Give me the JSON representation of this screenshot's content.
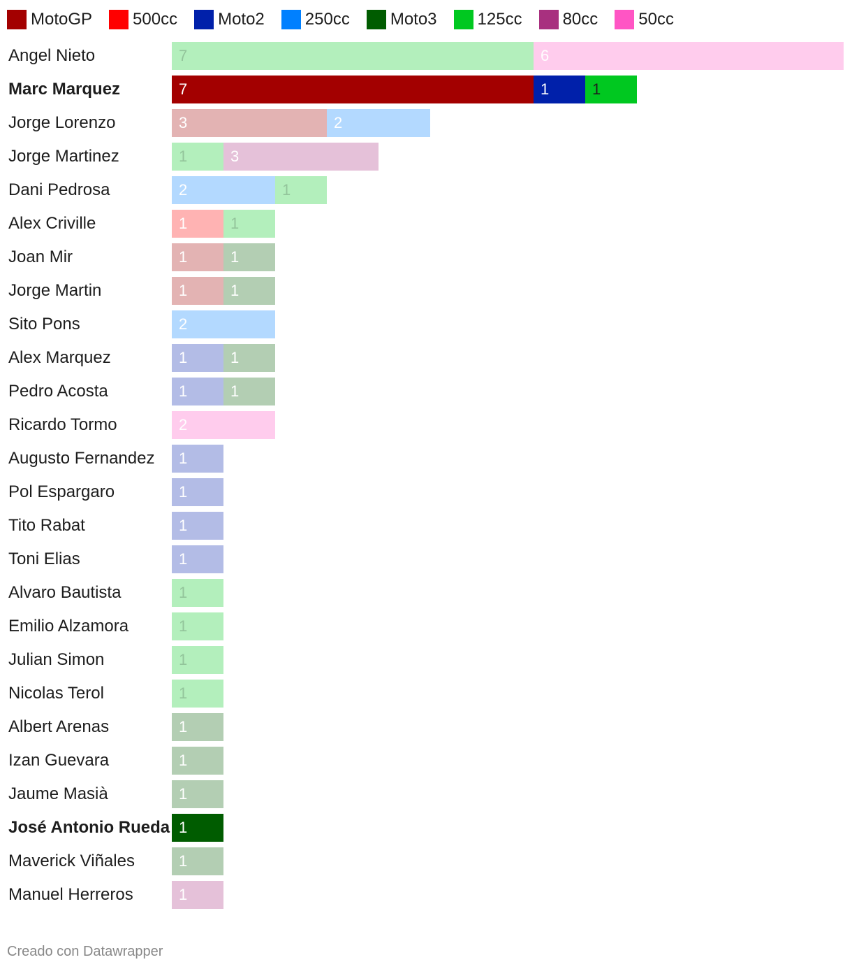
{
  "legend": [
    {
      "key": "motogp",
      "label": "MotoGP",
      "color": "#a30000"
    },
    {
      "key": "500cc",
      "label": "500cc",
      "color": "#ff0000"
    },
    {
      "key": "moto2",
      "label": "Moto2",
      "color": "#0020aa"
    },
    {
      "key": "250cc",
      "label": "250cc",
      "color": "#0080ff"
    },
    {
      "key": "moto3",
      "label": "Moto3",
      "color": "#005c00"
    },
    {
      "key": "125cc",
      "label": "125cc",
      "color": "#00c820"
    },
    {
      "key": "80cc",
      "label": "80cc",
      "color": "#a8307f"
    },
    {
      "key": "50cc",
      "label": "50cc",
      "color": "#ff55c4"
    }
  ],
  "chart_data": {
    "type": "bar",
    "orientation": "horizontal",
    "stacked": true,
    "xlim": [
      0,
      13
    ],
    "highlighted_rows": [
      "Marc Marquez",
      "José Antonio Rueda"
    ],
    "categories": [
      "Angel Nieto",
      "Marc Marquez",
      "Jorge Lorenzo",
      "Jorge Martinez",
      "Dani Pedrosa",
      "Alex Criville",
      "Joan Mir",
      "Jorge Martin",
      "Sito Pons",
      "Alex Marquez",
      "Pedro Acosta",
      "Ricardo Tormo",
      "Augusto Fernandez",
      "Pol Espargaro",
      "Tito Rabat",
      "Toni Elias",
      "Alvaro Bautista",
      "Emilio Alzamora",
      "Julian Simon",
      "Nicolas Terol",
      "Albert Arenas",
      "Izan Guevara",
      "Jaume Masià",
      "José Antonio Rueda",
      "Maverick Viñales",
      "Manuel Herreros"
    ],
    "series": [
      {
        "name": "MotoGP",
        "values": [
          0,
          7,
          3,
          0,
          0,
          0,
          1,
          1,
          0,
          0,
          0,
          0,
          0,
          0,
          0,
          0,
          0,
          0,
          0,
          0,
          0,
          0,
          0,
          0,
          0,
          0
        ]
      },
      {
        "name": "500cc",
        "values": [
          0,
          0,
          0,
          0,
          0,
          1,
          0,
          0,
          0,
          0,
          0,
          0,
          0,
          0,
          0,
          0,
          0,
          0,
          0,
          0,
          0,
          0,
          0,
          0,
          0,
          0
        ]
      },
      {
        "name": "Moto2",
        "values": [
          0,
          1,
          0,
          0,
          0,
          0,
          0,
          0,
          0,
          1,
          1,
          0,
          1,
          1,
          1,
          1,
          0,
          0,
          0,
          0,
          0,
          0,
          0,
          0,
          0,
          0
        ]
      },
      {
        "name": "250cc",
        "values": [
          0,
          0,
          2,
          0,
          2,
          0,
          0,
          0,
          2,
          0,
          0,
          0,
          0,
          0,
          0,
          0,
          0,
          0,
          0,
          0,
          0,
          0,
          0,
          0,
          0,
          0
        ]
      },
      {
        "name": "Moto3",
        "values": [
          0,
          0,
          0,
          0,
          0,
          0,
          1,
          1,
          0,
          1,
          1,
          0,
          0,
          0,
          0,
          0,
          0,
          0,
          0,
          0,
          1,
          1,
          1,
          1,
          1,
          0
        ]
      },
      {
        "name": "125cc",
        "values": [
          7,
          1,
          0,
          1,
          1,
          1,
          0,
          0,
          0,
          0,
          0,
          0,
          0,
          0,
          0,
          0,
          1,
          1,
          1,
          1,
          0,
          0,
          0,
          0,
          0,
          0
        ]
      },
      {
        "name": "80cc",
        "values": [
          0,
          0,
          0,
          3,
          0,
          0,
          0,
          0,
          0,
          0,
          0,
          0,
          0,
          0,
          0,
          0,
          0,
          0,
          0,
          0,
          0,
          0,
          0,
          0,
          0,
          1
        ]
      },
      {
        "name": "50cc",
        "values": [
          6,
          0,
          0,
          0,
          0,
          0,
          0,
          0,
          0,
          0,
          0,
          2,
          0,
          0,
          0,
          0,
          0,
          0,
          0,
          0,
          0,
          0,
          0,
          0,
          0,
          0
        ]
      }
    ]
  },
  "footer": {
    "credit": "Creado con Datawrapper"
  }
}
